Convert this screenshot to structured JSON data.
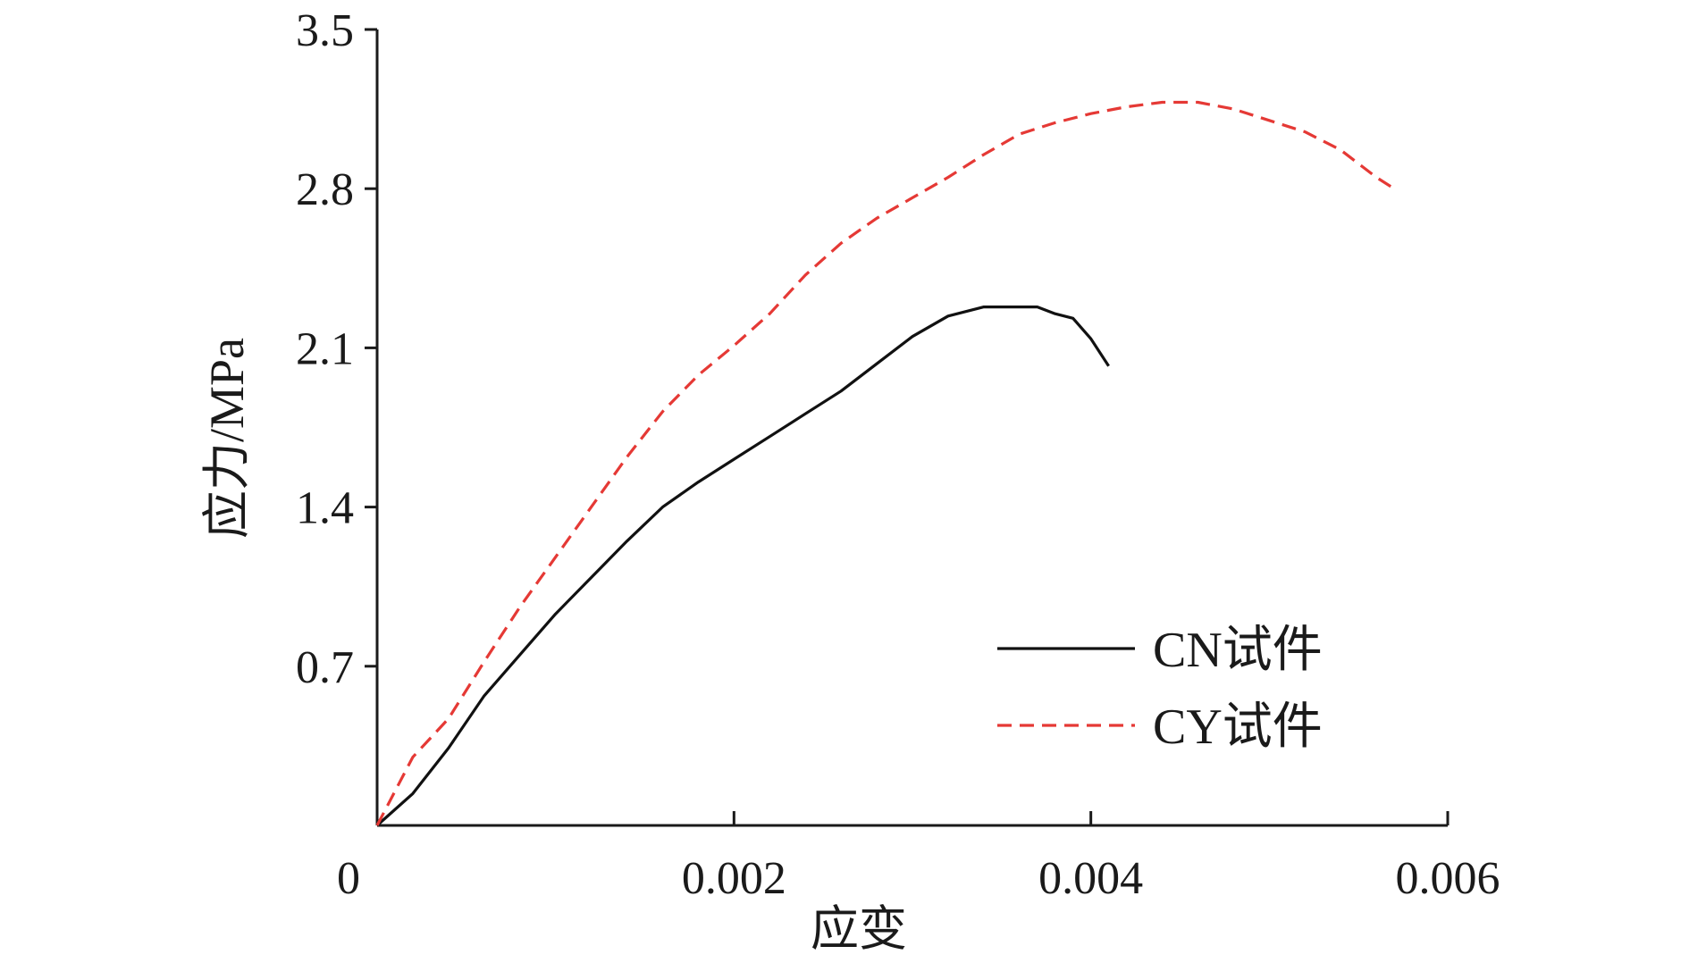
{
  "chart_data": {
    "type": "line",
    "title": "",
    "xlabel": "应变",
    "ylabel": "应力/MPa",
    "xlim": [
      0,
      0.006
    ],
    "ylim": [
      0,
      3.5
    ],
    "x_ticks": [
      0,
      0.002,
      0.004,
      0.006
    ],
    "x_tick_labels": [
      "0",
      "0.002",
      "0.004",
      "0.006"
    ],
    "y_ticks": [
      0.7,
      1.4,
      2.1,
      2.8,
      3.5
    ],
    "y_tick_labels": [
      "0.7",
      "1.4",
      "2.1",
      "2.8",
      "3.5"
    ],
    "grid": false,
    "legend_position": "bottom-right",
    "series": [
      {
        "name": "CN试件",
        "color": "#111111",
        "dash": "solid",
        "points": [
          [
            0,
            0
          ],
          [
            0.0002,
            0.14
          ],
          [
            0.0004,
            0.34
          ],
          [
            0.0006,
            0.57
          ],
          [
            0.0008,
            0.75
          ],
          [
            0.001,
            0.93
          ],
          [
            0.0012,
            1.09
          ],
          [
            0.0014,
            1.25
          ],
          [
            0.0016,
            1.4
          ],
          [
            0.0018,
            1.51
          ],
          [
            0.002,
            1.61
          ],
          [
            0.0022,
            1.71
          ],
          [
            0.0024,
            1.81
          ],
          [
            0.0026,
            1.91
          ],
          [
            0.0028,
            2.03
          ],
          [
            0.003,
            2.15
          ],
          [
            0.0032,
            2.24
          ],
          [
            0.0034,
            2.28
          ],
          [
            0.0036,
            2.28
          ],
          [
            0.0037,
            2.28
          ],
          [
            0.0038,
            2.25
          ],
          [
            0.0039,
            2.23
          ],
          [
            0.004,
            2.14
          ],
          [
            0.0041,
            2.02
          ]
        ]
      },
      {
        "name": "CY试件",
        "color": "#e53935",
        "dash": "dashed",
        "points": [
          [
            0,
            0
          ],
          [
            0.0002,
            0.3
          ],
          [
            0.0004,
            0.47
          ],
          [
            0.0006,
            0.72
          ],
          [
            0.0008,
            0.96
          ],
          [
            0.001,
            1.18
          ],
          [
            0.0012,
            1.4
          ],
          [
            0.0014,
            1.62
          ],
          [
            0.0016,
            1.82
          ],
          [
            0.0018,
            1.98
          ],
          [
            0.002,
            2.11
          ],
          [
            0.0022,
            2.25
          ],
          [
            0.0024,
            2.42
          ],
          [
            0.0026,
            2.56
          ],
          [
            0.0028,
            2.67
          ],
          [
            0.003,
            2.76
          ],
          [
            0.0032,
            2.85
          ],
          [
            0.0034,
            2.95
          ],
          [
            0.0036,
            3.04
          ],
          [
            0.0038,
            3.09
          ],
          [
            0.004,
            3.13
          ],
          [
            0.0042,
            3.16
          ],
          [
            0.0044,
            3.18
          ],
          [
            0.0046,
            3.18
          ],
          [
            0.0048,
            3.15
          ],
          [
            0.005,
            3.1
          ],
          [
            0.0052,
            3.05
          ],
          [
            0.0054,
            2.97
          ],
          [
            0.0056,
            2.85
          ],
          [
            0.0057,
            2.8
          ]
        ]
      }
    ]
  }
}
